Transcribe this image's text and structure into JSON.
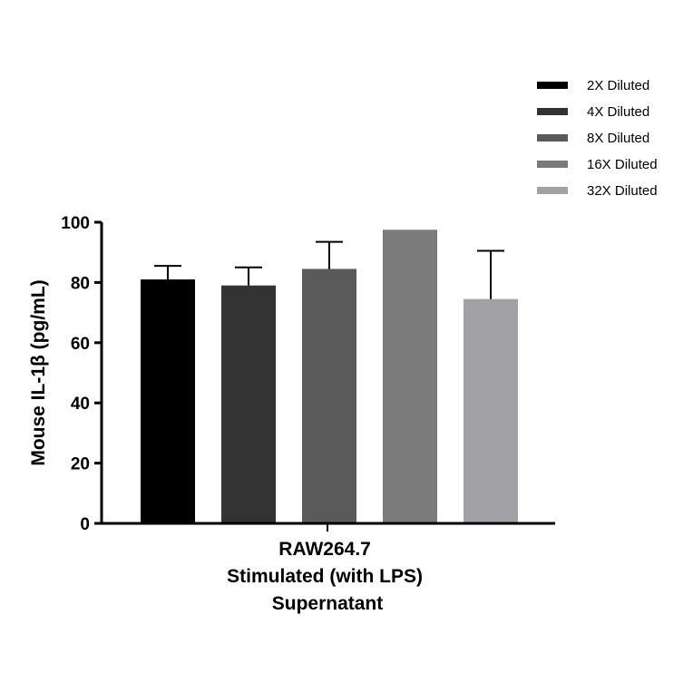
{
  "chart_data": {
    "type": "bar",
    "title": "",
    "ylabel": "Mouse IL-1β (pg/mL)",
    "xlabel_lines": [
      "RAW264.7",
      "Stimulated (with LPS)",
      "Supernatant"
    ],
    "ylim": [
      0,
      100
    ],
    "yticks": [
      0,
      20,
      40,
      60,
      80,
      100
    ],
    "legend_position": "top-right",
    "series": [
      {
        "name": "2X Diluted",
        "value": 81,
        "error": 4.5,
        "color": "#000000"
      },
      {
        "name": "4X Diluted",
        "value": 79,
        "error": 6,
        "color": "#333333"
      },
      {
        "name": "8X Diluted",
        "value": 84.5,
        "error": 9,
        "color": "#5a5a5a"
      },
      {
        "name": "16X Diluted",
        "value": 97.5,
        "error": 0,
        "color": "#7b7b7b"
      },
      {
        "name": "32X Diluted",
        "value": 74.5,
        "error": 16,
        "color": "#a2a2a6"
      }
    ]
  }
}
